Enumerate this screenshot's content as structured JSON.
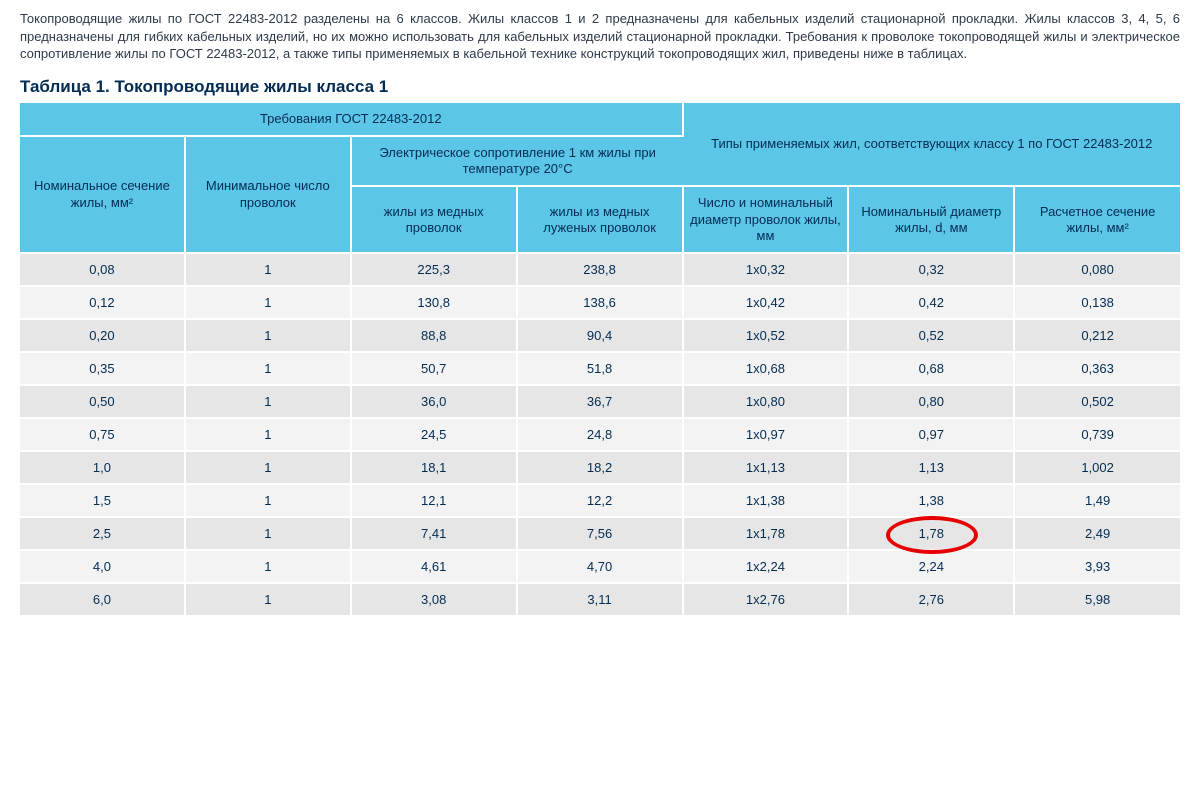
{
  "intro_text": "Токопроводящие жилы по ГОСТ 22483-2012 разделены на 6 классов. Жилы классов 1 и 2 предназначены для кабельных изделий стационарной прокладки. Жилы классов 3, 4, 5, 6 предназначены для гибких кабельных изделий, но их можно использовать для кабельных изделий стационарной прокладки. Требования к проволоке токопроводящей жилы и электрическое сопротивление жилы по ГОСТ 22483-2012, а также типы применяемых в кабельной технике конструкций токопроводящих жил, приведены ниже в таблицах.",
  "table_title": "Таблица 1. Токопроводящие жилы класса 1",
  "colors": {
    "header_bg": "#5bc6e8",
    "row_bg": "#e6e6e6",
    "row_alt_bg": "#f3f3f3",
    "border": "#ffffff",
    "text": "#042c52",
    "highlight": "#e60000"
  },
  "header": {
    "group_left": "Требования ГОСТ 22483-2012",
    "group_right": "Типы применяемых жил, соответствующих классу 1 по ГОСТ 22483-2012",
    "nominal_section": "Номинальное сечение жилы, мм²",
    "min_wires": "Минимальное число проволок",
    "resistance_group": "Электрическое сопротивление 1 км жилы при температуре 20°C",
    "res_copper": "жилы из медных проволок",
    "res_tinned": "жилы из медных луженых проволок",
    "wire_count_diam": "Число и номинальный диаметр проволок жилы, мм",
    "nominal_diam": "Номинальный диаметр жилы, d, мм",
    "calc_section": "Расчетное сечение жилы, мм²"
  },
  "rows": [
    {
      "sec": "0,08",
      "min": "1",
      "rcu": "225,3",
      "rsn": "238,8",
      "cnt": "1х0,32",
      "d": "0,32",
      "calc": "0,080"
    },
    {
      "sec": "0,12",
      "min": "1",
      "rcu": "130,8",
      "rsn": "138,6",
      "cnt": "1х0,42",
      "d": "0,42",
      "calc": "0,138"
    },
    {
      "sec": "0,20",
      "min": "1",
      "rcu": "88,8",
      "rsn": "90,4",
      "cnt": "1х0,52",
      "d": "0,52",
      "calc": "0,212"
    },
    {
      "sec": "0,35",
      "min": "1",
      "rcu": "50,7",
      "rsn": "51,8",
      "cnt": "1х0,68",
      "d": "0,68",
      "calc": "0,363"
    },
    {
      "sec": "0,50",
      "min": "1",
      "rcu": "36,0",
      "rsn": "36,7",
      "cnt": "1х0,80",
      "d": "0,80",
      "calc": "0,502"
    },
    {
      "sec": "0,75",
      "min": "1",
      "rcu": "24,5",
      "rsn": "24,8",
      "cnt": "1х0,97",
      "d": "0,97",
      "calc": "0,739"
    },
    {
      "sec": "1,0",
      "min": "1",
      "rcu": "18,1",
      "rsn": "18,2",
      "cnt": "1х1,13",
      "d": "1,13",
      "calc": "1,002"
    },
    {
      "sec": "1,5",
      "min": "1",
      "rcu": "12,1",
      "rsn": "12,2",
      "cnt": "1х1,38",
      "d": "1,38",
      "calc": "1,49"
    },
    {
      "sec": "2,5",
      "min": "1",
      "rcu": "7,41",
      "rsn": "7,56",
      "cnt": "1х1,78",
      "d": "1,78",
      "calc": "2,49"
    },
    {
      "sec": "4,0",
      "min": "1",
      "rcu": "4,61",
      "rsn": "4,70",
      "cnt": "1х2,24",
      "d": "2,24",
      "calc": "3,93"
    },
    {
      "sec": "6,0",
      "min": "1",
      "rcu": "3,08",
      "rsn": "3,11",
      "cnt": "1х2,76",
      "d": "2,76",
      "calc": "5,98"
    }
  ],
  "highlight": {
    "row_index": 8,
    "col_key": "d"
  }
}
